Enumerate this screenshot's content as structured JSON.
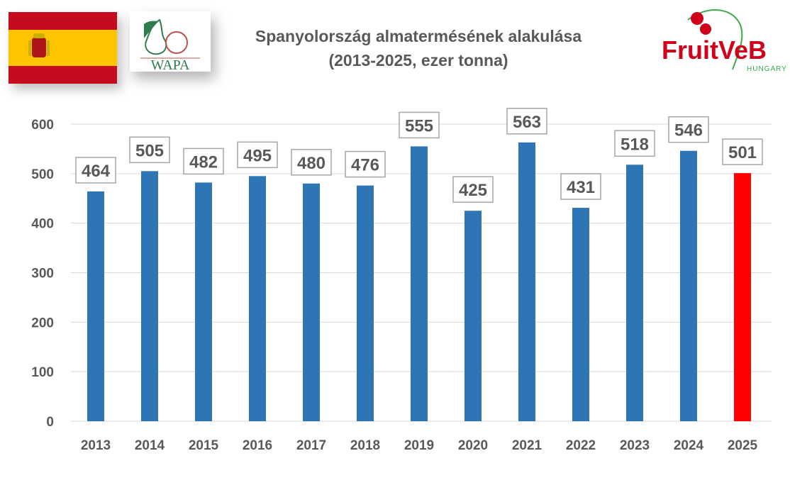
{
  "title_line1": "Spanyolország almatermésének alakulása",
  "title_line2": "(2013-2025, ezer tonna)",
  "logos": {
    "wapa": "WAPA",
    "fruitveb": "FruitVeB",
    "fruitveb_sub": "HUNGARY"
  },
  "colors": {
    "bar": "#2E75B6",
    "highlight": "#FF0000",
    "text": "#595959",
    "grid": "#D9D9D9"
  },
  "chart_data": {
    "type": "bar",
    "title": "Spanyolország almatermésének alakulása (2013-2025, ezer tonna)",
    "xlabel": "",
    "ylabel": "",
    "categories": [
      "2013",
      "2014",
      "2015",
      "2016",
      "2017",
      "2018",
      "2019",
      "2020",
      "2021",
      "2022",
      "2023",
      "2024",
      "2025"
    ],
    "values": [
      464,
      505,
      482,
      495,
      480,
      476,
      555,
      425,
      563,
      431,
      518,
      546,
      501
    ],
    "highlight_index": 12,
    "ylim": [
      0,
      600
    ],
    "yticks": [
      0,
      100,
      200,
      300,
      400,
      500,
      600
    ],
    "grid": true,
    "data_labels": true
  }
}
